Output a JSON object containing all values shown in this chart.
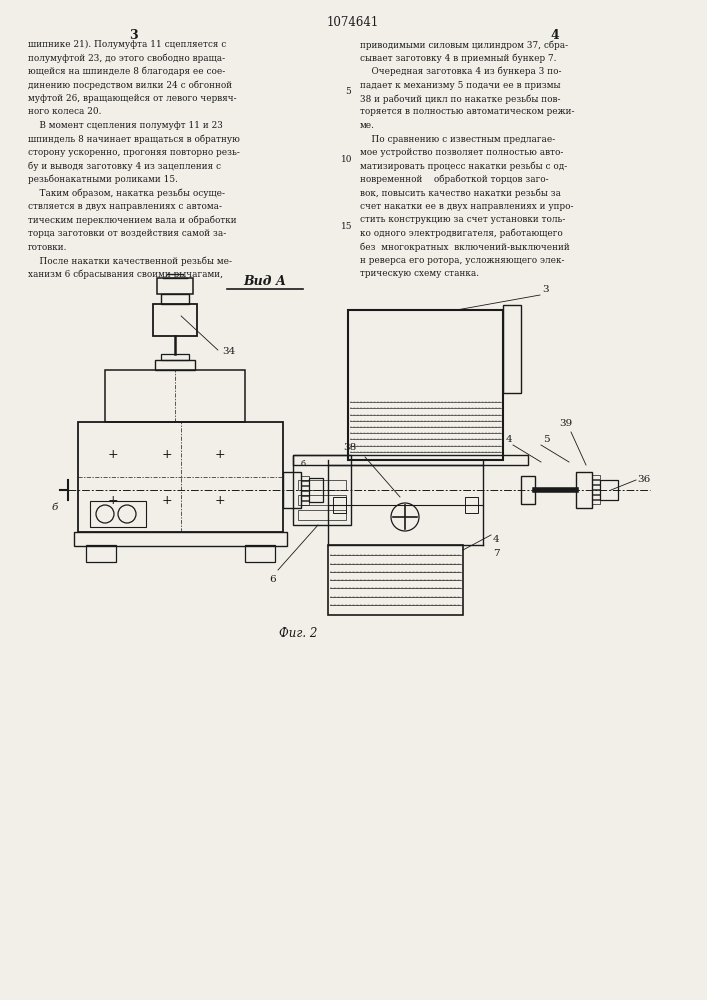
{
  "patent_number": "1074641",
  "col_left_num": "3",
  "col_right_num": "4",
  "view_label": "Вид А",
  "fig_label": "Фиг. 2",
  "bg_color": "#f2efe9",
  "text_color": "#1a1a1a",
  "line_color": "#1a1a1a",
  "text_left": [
    "шипнике 21). Полумуфта 11 сцепляется с",
    "полумуфтой 23, до этого свободно враща-",
    "ющейся на шпинделе 8 благодаря ее сое-",
    "динению посредством вилки 24 с обгонной",
    "муфтой 26, вращающейся от левого червяч-",
    "ного колеса 20.",
    "    В момент сцепления полумуфт 11 и 23",
    "шпиндель 8 начинает вращаться в обратную",
    "сторону ускоренно, прогоняя повторно резь-",
    "бу и выводя заготовку 4 из зацепления с",
    "резьбонакатными роликами 15.",
    "    Таким образом, накатка резьбы осуще-",
    "ствляется в двух направлениях с автома-",
    "тическим переключением вала и обработки",
    "торца заготовки от воздействия самой за-",
    "готовки.",
    "    После накатки качественной резьбы ме-",
    "ханизм 6 сбрасывания своими рычагами,"
  ],
  "text_right": [
    "приводимыми силовым цилиндром 37, сбра-",
    "сывает заготовку 4 в приемный бункер 7.",
    "    Очередная заготовка 4 из бункера 3 по-",
    "падает к механизму 5 подачи ее в призмы",
    "38 и рабочий цикл по накатке резьбы пов-",
    "торяется в полностью автоматическом режи-",
    "ме.",
    "    По сравнению с известным предлагае-",
    "мое устройство позволяет полностью авто-",
    "матизировать процесс накатки резьбы с од-",
    "новременной    обработкой торцов заго-",
    "вок, повысить качество накатки резьбы за",
    "счет накатки ее в двух направлениях и упро-",
    "стить конструкцию за счет установки толь-",
    "ко одного электродвигателя, работающего",
    "без  многократных  включений-выключений",
    "н реверса его ротора, усложняющего элек-",
    "трическую схему станка."
  ]
}
